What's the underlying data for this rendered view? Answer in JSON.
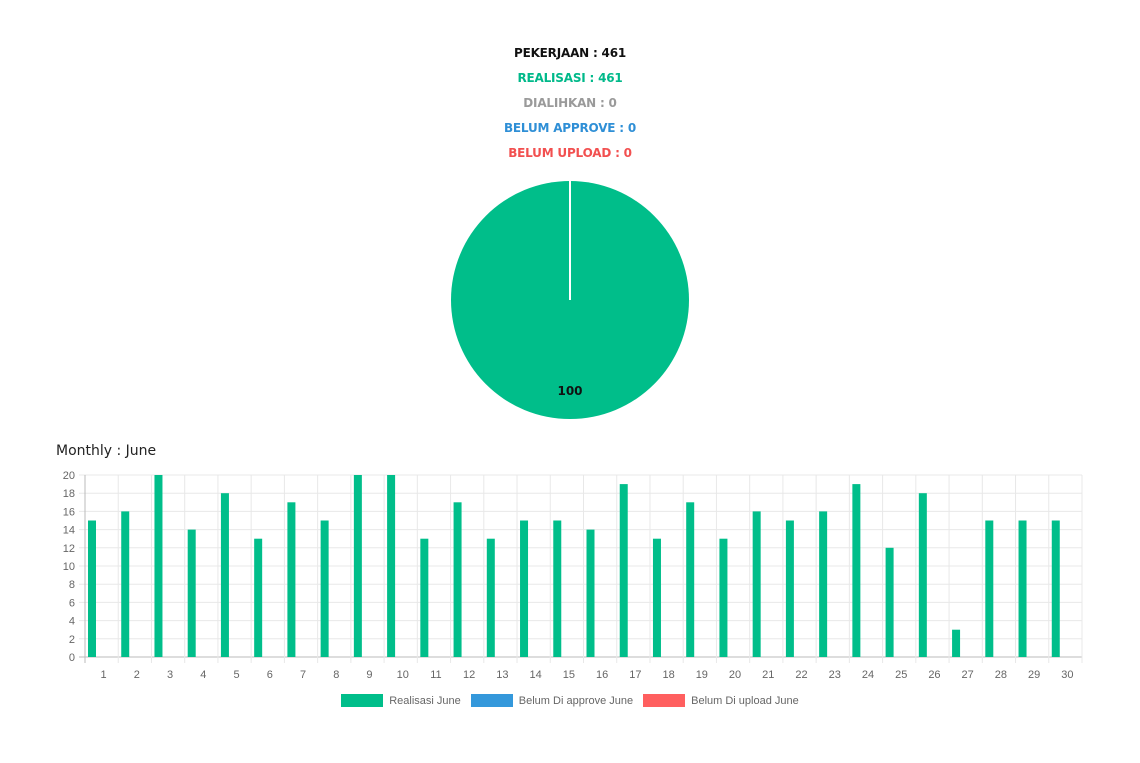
{
  "summary": {
    "pekerjaan": "PEKERJAAN : 461",
    "realisasi": "REALISASI : 461",
    "dialihkan": "DIALIHKAN : 0",
    "belum_approve": "BELUM APPROVE : 0",
    "belum_upload": "BELUM UPLOAD : 0"
  },
  "colors": {
    "realisasi": "#00be8a",
    "belum_approve": "#3498db",
    "belum_upload": "#ff5f5f",
    "dialihkan": "#9a9a9a"
  },
  "monthly_title": "Monthly : June",
  "chart_data": [
    {
      "type": "pie",
      "values": [
        100
      ],
      "labels": [
        "100"
      ],
      "colors": [
        "#00be8a"
      ]
    },
    {
      "type": "bar",
      "categories": [
        "1",
        "2",
        "3",
        "4",
        "5",
        "6",
        "7",
        "8",
        "9",
        "10",
        "11",
        "12",
        "13",
        "14",
        "15",
        "16",
        "17",
        "18",
        "19",
        "20",
        "21",
        "22",
        "23",
        "24",
        "25",
        "26",
        "27",
        "28",
        "29",
        "30"
      ],
      "series": [
        {
          "name": "Realisasi June",
          "color": "#00be8a",
          "values": [
            15,
            16,
            20,
            14,
            18,
            13,
            17,
            15,
            20,
            20,
            13,
            17,
            13,
            15,
            15,
            14,
            19,
            13,
            17,
            13,
            16,
            15,
            16,
            19,
            12,
            18,
            3,
            15,
            15,
            15
          ]
        },
        {
          "name": "Belum Di approve June",
          "color": "#3498db",
          "values": [
            0,
            0,
            0,
            0,
            0,
            0,
            0,
            0,
            0,
            0,
            0,
            0,
            0,
            0,
            0,
            0,
            0,
            0,
            0,
            0,
            0,
            0,
            0,
            0,
            0,
            0,
            0,
            0,
            0,
            0
          ]
        },
        {
          "name": "Belum Di upload June",
          "color": "#ff5f5f",
          "values": [
            0,
            0,
            0,
            0,
            0,
            0,
            0,
            0,
            0,
            0,
            0,
            0,
            0,
            0,
            0,
            0,
            0,
            0,
            0,
            0,
            0,
            0,
            0,
            0,
            0,
            0,
            0,
            0,
            0,
            0
          ]
        }
      ],
      "yticks": [
        "0",
        "2",
        "4",
        "6",
        "8",
        "10",
        "12",
        "14",
        "16",
        "18",
        "20"
      ],
      "ylim": [
        0,
        20
      ],
      "grid": true,
      "legend": "bottom"
    }
  ]
}
